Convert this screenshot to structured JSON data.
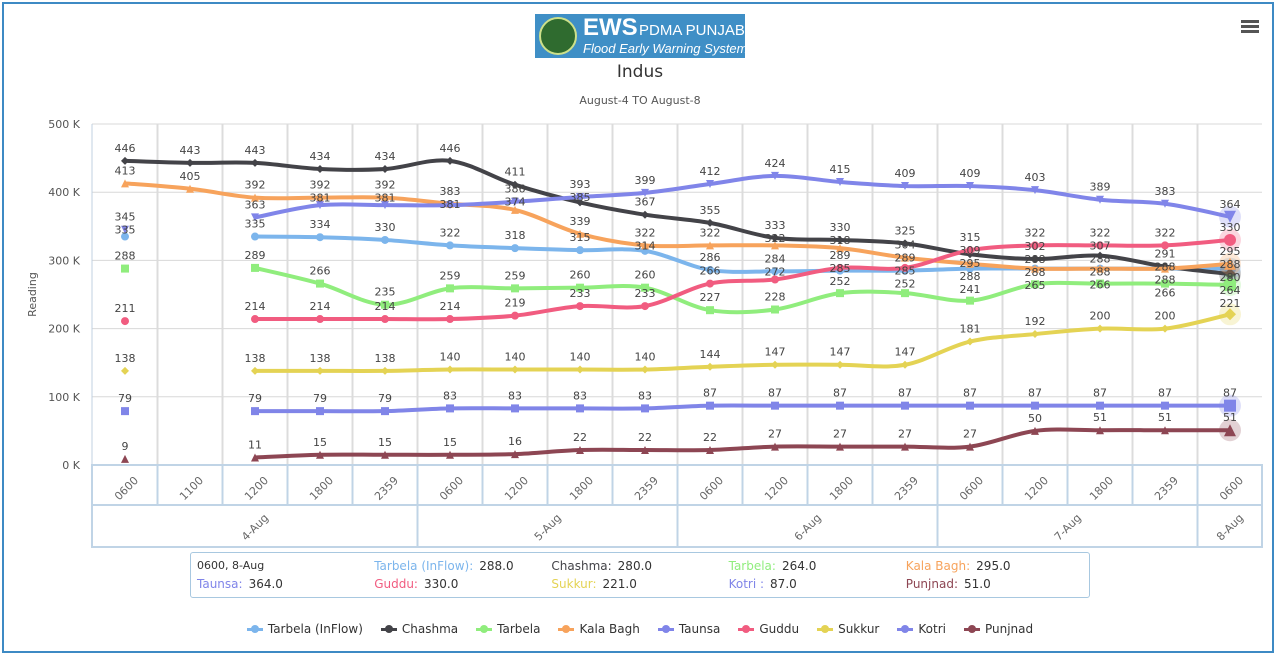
{
  "header": {
    "logo_text": "EWS PDMA PUNJAB",
    "logo_sub": "Flood Early Warning System",
    "menu_icon": "hamburger-icon"
  },
  "chart_data": {
    "type": "line",
    "title": "Indus",
    "subtitle": "August-4 TO August-8",
    "ylabel": "Reading",
    "ylim": [
      0,
      500
    ],
    "yticks": [
      "0 K",
      "100 K",
      "200 K",
      "300 K",
      "400 K",
      "500 K"
    ],
    "times": [
      "0600",
      "1100",
      "1200",
      "1800",
      "2359",
      "0600",
      "1200",
      "1800",
      "2359",
      "0600",
      "1200",
      "1800",
      "2359",
      "0600",
      "1200",
      "1800",
      "2359",
      "0600"
    ],
    "days": [
      {
        "label": "4-Aug",
        "count": 5
      },
      {
        "label": "5-Aug",
        "count": 4
      },
      {
        "label": "6-Aug",
        "count": 4
      },
      {
        "label": "7-Aug",
        "count": 4
      },
      {
        "label": "8-Aug",
        "count": 1
      }
    ],
    "series": [
      {
        "name": "Tarbela (InFlow)",
        "color": "#7cb5ec",
        "marker": "circle",
        "values": [
          335,
          null,
          335,
          334,
          330,
          322,
          318,
          315,
          314,
          286,
          284,
          285,
          285,
          288,
          288,
          288,
          288,
          288
        ]
      },
      {
        "name": "Chashma",
        "color": "#434348",
        "marker": "diamond",
        "values": [
          446,
          443,
          443,
          434,
          434,
          446,
          411,
          385,
          367,
          355,
          333,
          330,
          325,
          309,
          302,
          307,
          291,
          280
        ]
      },
      {
        "name": "Tarbela",
        "color": "#90ed7d",
        "marker": "square",
        "values": [
          288,
          null,
          289,
          266,
          235,
          259,
          259,
          260,
          260,
          227,
          228,
          252,
          252,
          241,
          265,
          266,
          266,
          264
        ]
      },
      {
        "name": "Kala Bagh",
        "color": "#f7a35c",
        "marker": "triangle",
        "values": [
          413,
          405,
          392,
          392,
          392,
          383,
          374,
          339,
          322,
          322,
          322,
          318,
          304,
          295,
          288,
          288,
          288,
          295
        ]
      },
      {
        "name": "Taunsa",
        "color": "#8085e9",
        "marker": "triangle-down",
        "values": [
          345,
          null,
          363,
          381,
          381,
          381,
          386,
          393,
          399,
          412,
          424,
          415,
          409,
          409,
          403,
          389,
          383,
          364
        ]
      },
      {
        "name": "Guddu",
        "color": "#f15c80",
        "marker": "circle",
        "values": [
          211,
          null,
          214,
          214,
          214,
          214,
          219,
          233,
          233,
          266,
          272,
          289,
          289,
          315,
          322,
          322,
          322,
          330
        ]
      },
      {
        "name": "Sukkur",
        "color": "#e4d354",
        "marker": "diamond",
        "values": [
          138,
          null,
          138,
          138,
          138,
          140,
          140,
          140,
          140,
          144,
          147,
          147,
          147,
          181,
          192,
          200,
          200,
          221
        ]
      },
      {
        "name": "Kotri",
        "color": "#8085e8",
        "marker": "square",
        "values": [
          79,
          null,
          79,
          79,
          79,
          83,
          83,
          83,
          83,
          87,
          87,
          87,
          87,
          87,
          87,
          87,
          87,
          87
        ]
      },
      {
        "name": "Punjnad",
        "color": "#8d4653",
        "marker": "triangle",
        "values": [
          9,
          null,
          11,
          15,
          15,
          15,
          16,
          22,
          22,
          22,
          27,
          27,
          27,
          27,
          50,
          51,
          51,
          51
        ]
      }
    ],
    "legend": "bottom"
  },
  "tooltip": {
    "header": "0600, 8-Aug",
    "rows": [
      {
        "label": "Tarbela (InFlow):",
        "value": "288.0"
      },
      {
        "label": "Chashma:",
        "value": "280.0"
      },
      {
        "label": "Tarbela:",
        "value": "264.0"
      },
      {
        "label": "Kala Bagh:",
        "value": "295.0"
      },
      {
        "label": "Taunsa:",
        "value": "364.0"
      },
      {
        "label": "Guddu:",
        "value": "330.0"
      },
      {
        "label": "Sukkur:",
        "value": "221.0"
      },
      {
        "label": "Kotri :",
        "value": "87.0"
      },
      {
        "label": "Punjnad:",
        "value": "51.0"
      }
    ]
  }
}
